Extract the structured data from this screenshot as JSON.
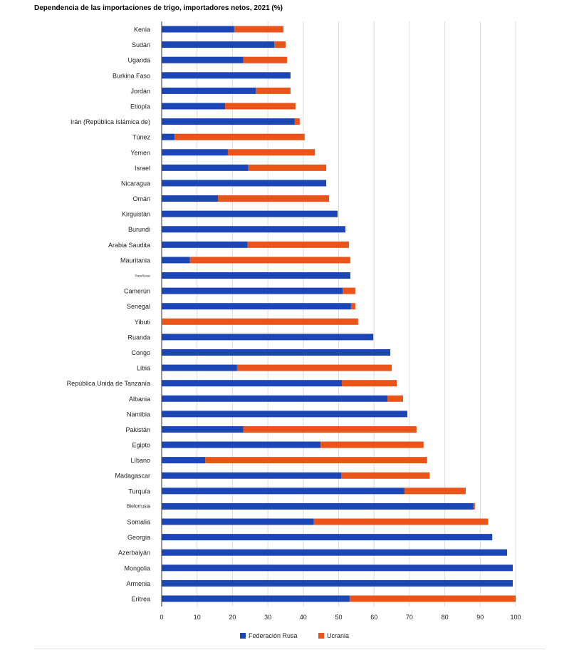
{
  "chart_data": {
    "type": "bar",
    "orientation": "horizontal",
    "stacked": true,
    "title": "Dependencia de las importaciones de trigo, importadores netos, 2021 (%)",
    "xlabel": "",
    "ylabel": "",
    "xlim": [
      0,
      100
    ],
    "xticks": [
      0,
      10,
      20,
      30,
      40,
      50,
      60,
      70,
      80,
      90,
      100
    ],
    "grid": true,
    "legend_position": "bottom",
    "categories": [
      "Kenia",
      "Sudán",
      "Uganda",
      "Burkina Faso",
      "Jordán",
      "Etiopía",
      "Irán (República Islámica de)",
      "Túnez",
      "Yemen",
      "Israel",
      "Nicaragua",
      "Omán",
      "Kirguistán",
      "Burundi",
      "Arabia Saudita",
      "Mauritania",
      "Para llevar",
      "Camerún",
      "Senegal",
      "Yibuti",
      "Ruanda",
      "Congo",
      "Libia",
      "República Unida de Tanzanía",
      "Albania",
      "Namibia",
      "Pakistán",
      "Egipto",
      "Líbano",
      "Madagascar",
      "Turquía",
      "Bielorrusia",
      "Somalia",
      "Georgia",
      "Azerbaiyán",
      "Mongolia",
      "Armenia",
      "Eritrea"
    ],
    "small_label_categories": [
      "Para llevar",
      "Bielorrusia"
    ],
    "series": [
      {
        "name": "Federación Rusa",
        "color": "#1c45b5",
        "values": [
          20.5,
          31.8,
          23.1,
          36.4,
          26.6,
          17.9,
          37.6,
          3.6,
          18.7,
          24.5,
          46.5,
          15.9,
          49.7,
          51.9,
          24.3,
          8.0,
          53.3,
          51.1,
          53.5,
          0,
          59.8,
          64.6,
          21.3,
          50.9,
          63.8,
          69.4,
          23.1,
          44.9,
          12.3,
          50.7,
          68.6,
          88.1,
          43.0,
          93.4,
          97.6,
          99.2,
          99.2,
          53.1
        ]
      },
      {
        "name": "Ucrania",
        "color": "#ea5419",
        "values": [
          13.9,
          3.2,
          12.3,
          0,
          9.8,
          19.9,
          1.4,
          36.8,
          24.6,
          22.0,
          0,
          31.4,
          0,
          0,
          28.6,
          45.3,
          0,
          3.6,
          1.2,
          55.5,
          0,
          0,
          43.7,
          15.5,
          4.4,
          0,
          48.9,
          29.1,
          62.7,
          25.0,
          17.3,
          0.4,
          49.2,
          0,
          0,
          0,
          0,
          46.9
        ]
      }
    ]
  }
}
